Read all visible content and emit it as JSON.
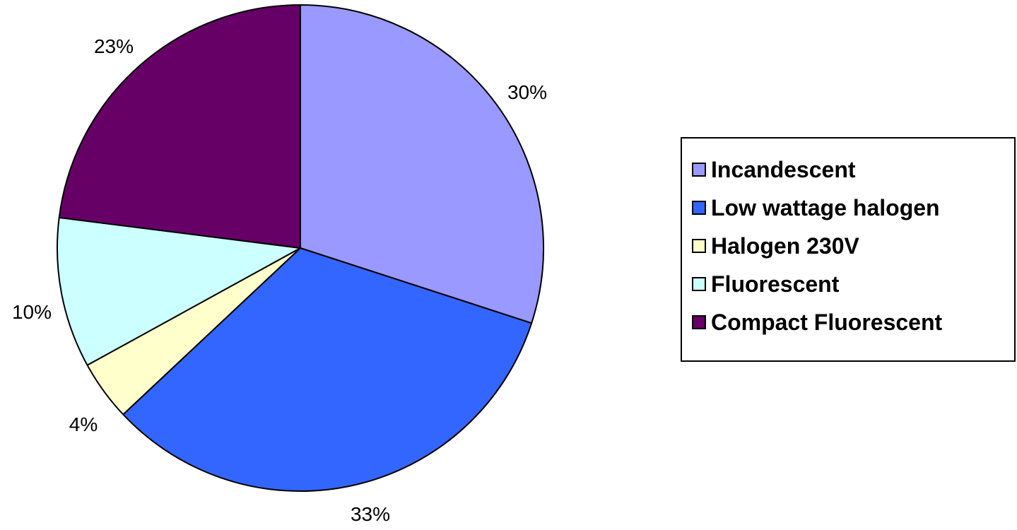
{
  "chart_data": {
    "type": "pie",
    "title": "",
    "start_angle_deg": 0,
    "direction": "clockwise",
    "slices": [
      {
        "name": "Incandescent",
        "value": 30,
        "label": "30%",
        "color": "#9999FF"
      },
      {
        "name": "Low wattage halogen",
        "value": 33,
        "label": "33%",
        "color": "#3366FF"
      },
      {
        "name": "Halogen 230V",
        "value": 4,
        "label": "4%",
        "color": "#FFFFCC"
      },
      {
        "name": "Fluorescent",
        "value": 10,
        "label": "10%",
        "color": "#CCFFFF"
      },
      {
        "name": "Compact Fluorescent",
        "value": 23,
        "label": "23%",
        "color": "#660066"
      }
    ],
    "legend_position": "right"
  }
}
